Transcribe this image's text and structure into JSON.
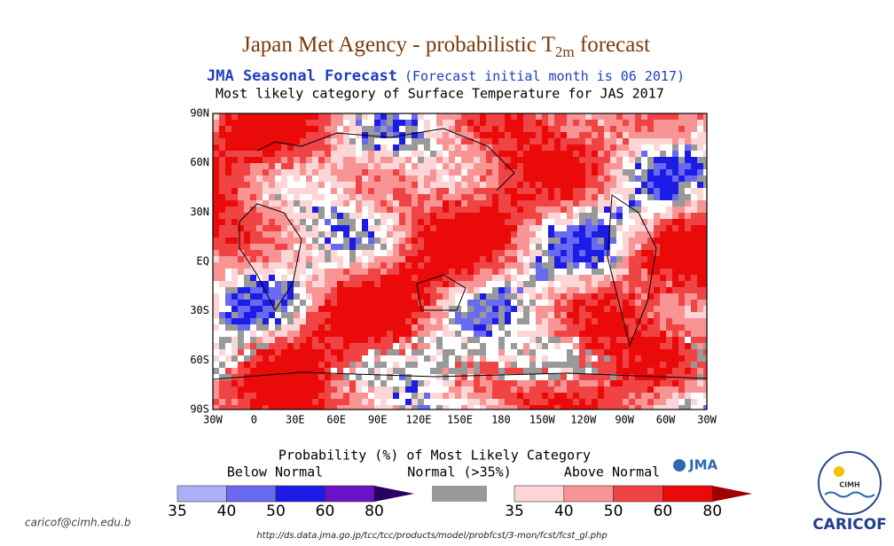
{
  "title": {
    "main": "Japan Met Agency - probabilistic T",
    "subscript": "2m",
    "suffix": " forecast"
  },
  "map": {
    "heading": "JMA Seasonal Forecast",
    "initial": "(Forecast initial month is 06 2017)",
    "subtitle": "Most likely category of Surface Temperature for JAS 2017",
    "lat_labels": [
      "90N",
      "60N",
      "30N",
      "EQ",
      "30S",
      "60S",
      "90S"
    ],
    "lon_labels": [
      "30W",
      "0",
      "30E",
      "60E",
      "90E",
      "120E",
      "150E",
      "180",
      "150W",
      "120W",
      "90W",
      "60W",
      "30W"
    ]
  },
  "legend": {
    "title": "Probability (%) of Most Likely Category",
    "below": {
      "label": "Below Normal",
      "ticks": [
        35,
        40,
        50,
        60,
        80
      ],
      "colors": [
        "#aab0f8",
        "#6a6af0",
        "#1c1ce6",
        "#6a12c8"
      ],
      "arrow_color": "#2a0060"
    },
    "normal": {
      "label": "Normal (>35%)",
      "color": "#999999"
    },
    "above": {
      "label": "Above Normal",
      "ticks": [
        35,
        40,
        50,
        60,
        80
      ],
      "colors": [
        "#fcd6d6",
        "#f89494",
        "#f04444",
        "#ea0a0a"
      ],
      "arrow_color": "#a00000"
    },
    "brand": "JMA"
  },
  "footer": {
    "email": "caricof@cimh.edu.b",
    "url": "http://ds.data.jma.go.jp/tcc/tcc/products/model/probfcst/3-mon/fcst/fcst_gl.php"
  },
  "logo": {
    "inner": "CIMH",
    "name": "CARICOF"
  }
}
